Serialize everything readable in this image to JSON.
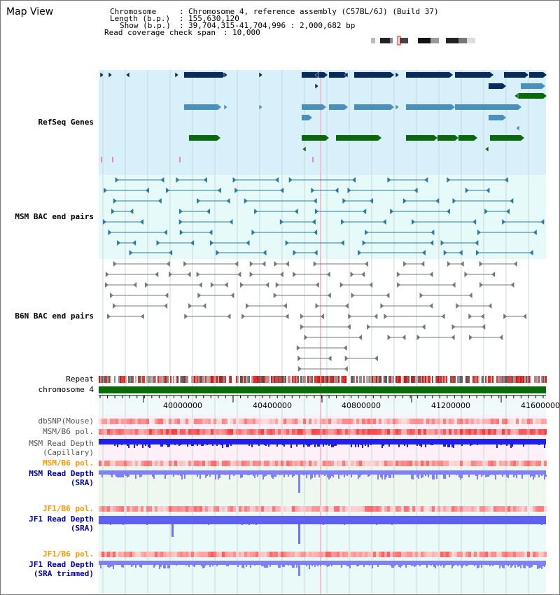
{
  "title": "Map View",
  "header": {
    "chromosome_key": "Chromosome",
    "chromosome_value": "Chromosome 4, reference assembly (C57BL/6J) (Build 37)",
    "length_key": "Length (b.p.)",
    "length_value": "155,630,120",
    "show_key": "Show (b.p.)",
    "show_value": "39,704,315-41,704,996 : 2,000,682 bp",
    "span_key": "Read coverage check span",
    "span_value": "10,000"
  },
  "tracks": {
    "refseq": "RefSeq Genes",
    "msm_bac": "MSM BAC end pairs",
    "b6n_bac": "B6N BAC end pairs",
    "repeat": "Repeat",
    "chromosome": "chromosome 4",
    "dbsnp": "dbSNP(Mouse)",
    "msm_pol": "MSM/B6 pol.",
    "msm_depth_cap_1": "MSM Read Depth",
    "msm_depth_cap_2": "(Capillary)",
    "msm_pol2": "MSM/B6 pol.",
    "msm_depth_sra_1": "MSM Read Depth",
    "msm_depth_sra_2": "(SRA)",
    "jf1_pol": "JF1/B6 pol.",
    "jf1_depth_1": "JF1 Read Depth",
    "jf1_depth_2": "(SRA)",
    "jf1_pol2": "JF1/B6 pol.",
    "jf1_trim_1": "JF1 Read Depth",
    "jf1_trim_2": "(SRA trimmed)"
  },
  "ruler": {
    "ticks": [
      "40000000",
      "40400000",
      "40800000",
      "41200000",
      "41600000"
    ]
  },
  "colors": {
    "refseq_bg": "#d8f0fa",
    "bac_bg": "#e6fafa",
    "gene_dark": "#0a2a5c",
    "gene_mid": "#4a90b8",
    "gene_green": "#0a6a0a",
    "msm_label": "#005a7a",
    "b6n_label": "#666666",
    "depth_blue": "#2020dd",
    "pol_red": "#ff4040",
    "orange_label": "#ff9900",
    "navy_label": "#0000aa"
  }
}
